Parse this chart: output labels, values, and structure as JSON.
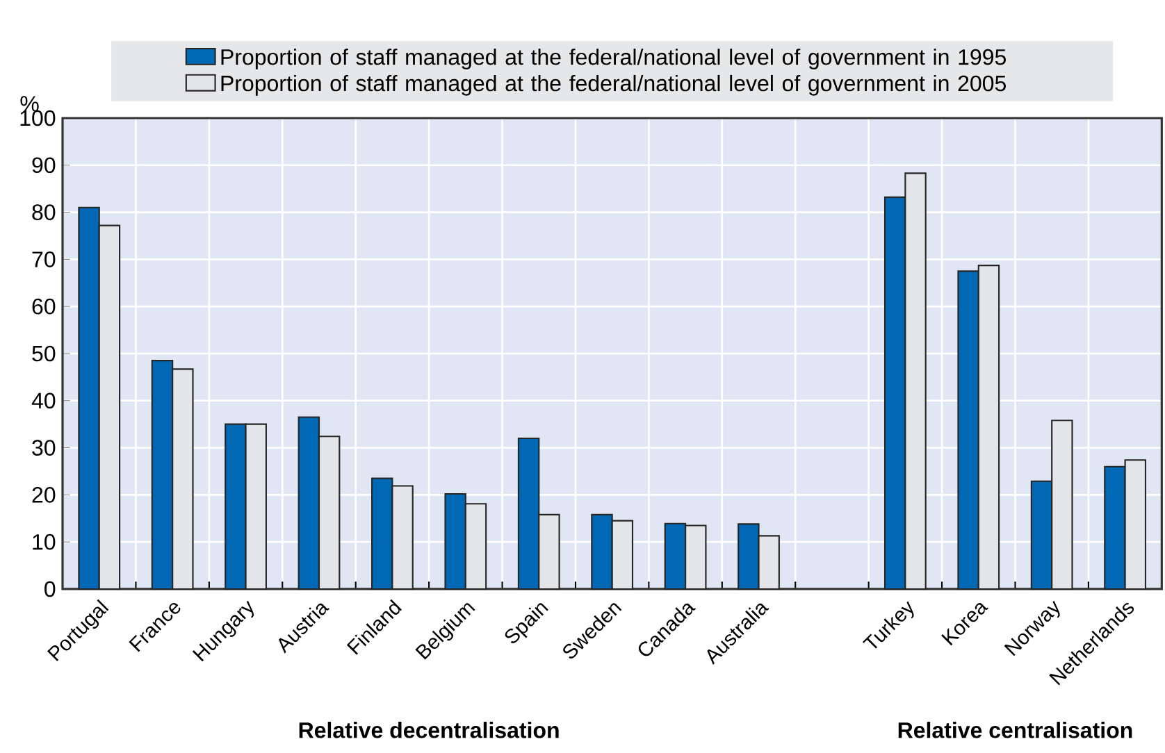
{
  "chart_data": {
    "type": "bar",
    "ylabel": "%",
    "categories": [
      "Portugal",
      "France",
      "Hungary",
      "Austria",
      "Finland",
      "Belgium",
      "Spain",
      "Sweden",
      "Canada",
      "Australia",
      null,
      "Turkey",
      "Korea",
      "Norway",
      "Netherlands"
    ],
    "series": [
      {
        "name": "Proportion of staff managed at the federal/national level of government in 1995",
        "color": "#0068b4",
        "values": [
          81,
          48.5,
          35,
          36.5,
          23.5,
          20.2,
          32,
          15.8,
          13.9,
          13.8,
          null,
          83.2,
          67.5,
          22.9,
          26
        ]
      },
      {
        "name": "Proportion of staff managed at the federal/national level of government in 2005",
        "color": "#e4e5e9",
        "values": [
          77.2,
          46.7,
          35,
          32.4,
          21.9,
          18.1,
          15.8,
          14.5,
          13.5,
          11.3,
          null,
          88.3,
          68.7,
          35.8,
          27.4
        ]
      }
    ],
    "ylim": [
      0,
      100
    ],
    "yticks": [
      0,
      10,
      20,
      30,
      40,
      50,
      60,
      70,
      80,
      90,
      100
    ],
    "grid": true,
    "legend": "top",
    "annotations": [
      "Relative decentralisation",
      "Relative centralisation"
    ]
  }
}
